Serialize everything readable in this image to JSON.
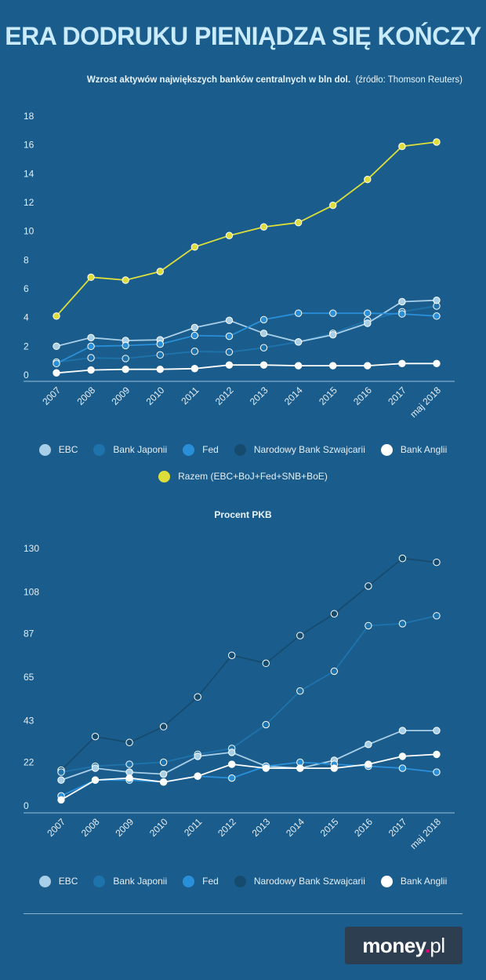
{
  "title": "ERA DODRUKU PIENIĄDZA SIĘ KOŃCZY",
  "subtitle": {
    "main": "Wzrost aktywów największych banków centralnych w bln dol.",
    "source": "(źródło: Thomson Reuters)"
  },
  "colors": {
    "background": "#1a5d8c",
    "EBC": "#a8cfe8",
    "BoJ": "#1f73ad",
    "Fed": "#2a8fd9",
    "SNB": "#174b6e",
    "BoE": "#ffffff",
    "Razem": "#dede3a"
  },
  "chart_data": [
    {
      "type": "line",
      "title": "Wzrost aktywów największych banków centralnych w bln dol.",
      "categories": [
        "2007",
        "2008",
        "2009",
        "2010",
        "2011",
        "2012",
        "2013",
        "2014",
        "2015",
        "2016",
        "2017",
        "maj 2018"
      ],
      "yticks": [
        0,
        2,
        4,
        6,
        8,
        10,
        12,
        14,
        16,
        18
      ],
      "ylim": [
        0,
        18
      ],
      "series": [
        {
          "key": "BoJ",
          "name": "Bank Japonii",
          "values": [
            0.9,
            1.2,
            1.15,
            1.4,
            1.65,
            1.6,
            1.9,
            2.3,
            2.9,
            3.8,
            4.4,
            4.8
          ]
        },
        {
          "key": "EBC",
          "name": "EBC",
          "values": [
            2.0,
            2.6,
            2.4,
            2.45,
            3.3,
            3.8,
            2.9,
            2.3,
            2.8,
            3.6,
            5.1,
            5.2
          ]
        },
        {
          "key": "Fed",
          "name": "Fed",
          "values": [
            0.8,
            2.0,
            2.05,
            2.15,
            2.75,
            2.7,
            3.85,
            4.3,
            4.3,
            4.3,
            4.25,
            4.1
          ]
        },
        {
          "key": "BoE",
          "name": "Bank Anglii",
          "values": [
            0.15,
            0.35,
            0.4,
            0.4,
            0.45,
            0.7,
            0.7,
            0.65,
            0.65,
            0.65,
            0.8,
            0.8
          ]
        },
        {
          "key": "Razem",
          "name": "Razem (EBC+BoJ+Fed+SNB+BoE)",
          "values": [
            4.1,
            6.8,
            6.6,
            7.2,
            8.9,
            9.7,
            10.3,
            10.6,
            11.8,
            13.6,
            15.9,
            16.2
          ]
        }
      ]
    },
    {
      "type": "line",
      "title": "Procent PKB",
      "categories": [
        "2007",
        "2008",
        "2009",
        "2010",
        "2011",
        "2012",
        "2013",
        "2014",
        "2015",
        "2016",
        "2017",
        "maj 2018"
      ],
      "yticks": [
        0,
        22,
        43,
        65,
        87,
        108,
        130
      ],
      "ylim": [
        0,
        130
      ],
      "series": [
        {
          "key": "SNB",
          "name": "Narodowy Bank Szwajcarii",
          "values": [
            18,
            35,
            32,
            40,
            55,
            76,
            72,
            86,
            97,
            111,
            125,
            123
          ]
        },
        {
          "key": "BoJ",
          "name": "Bank Japonii",
          "values": [
            17,
            20,
            21,
            22,
            26,
            29,
            41,
            58,
            68,
            91,
            92,
            96
          ]
        },
        {
          "key": "EBC",
          "name": "EBC",
          "values": [
            13,
            19,
            17,
            16,
            25,
            27,
            20,
            19,
            23,
            31,
            38,
            38
          ]
        },
        {
          "key": "Fed",
          "name": "Fed",
          "values": [
            5,
            13,
            13,
            12,
            15,
            14,
            20,
            22,
            21,
            20,
            19,
            17
          ]
        },
        {
          "key": "BoE",
          "name": "Bank Anglii",
          "values": [
            3,
            13,
            14,
            12,
            15,
            21,
            19,
            19,
            19,
            21,
            25,
            26
          ]
        }
      ]
    }
  ],
  "legend1": {
    "row1": [
      {
        "key": "EBC",
        "label": "EBC"
      },
      {
        "key": "BoJ",
        "label": "Bank Japonii"
      },
      {
        "key": "Fed",
        "label": "Fed"
      },
      {
        "key": "SNB",
        "label": "Narodowy Bank Szwajcarii"
      },
      {
        "key": "BoE",
        "label": "Bank Anglii"
      }
    ],
    "row2": [
      {
        "key": "Razem",
        "label": "Razem (EBC+BoJ+Fed+SNB+BoE)"
      }
    ]
  },
  "legend2": {
    "items": [
      {
        "key": "EBC",
        "label": "EBC"
      },
      {
        "key": "BoJ",
        "label": "Bank Japonii"
      },
      {
        "key": "Fed",
        "label": "Fed"
      },
      {
        "key": "SNB",
        "label": "Narodowy Bank Szwajcarii"
      },
      {
        "key": "BoE",
        "label": "Bank Anglii"
      }
    ]
  },
  "logo": {
    "main": "money",
    "dot": ".",
    "tail": "pl"
  }
}
